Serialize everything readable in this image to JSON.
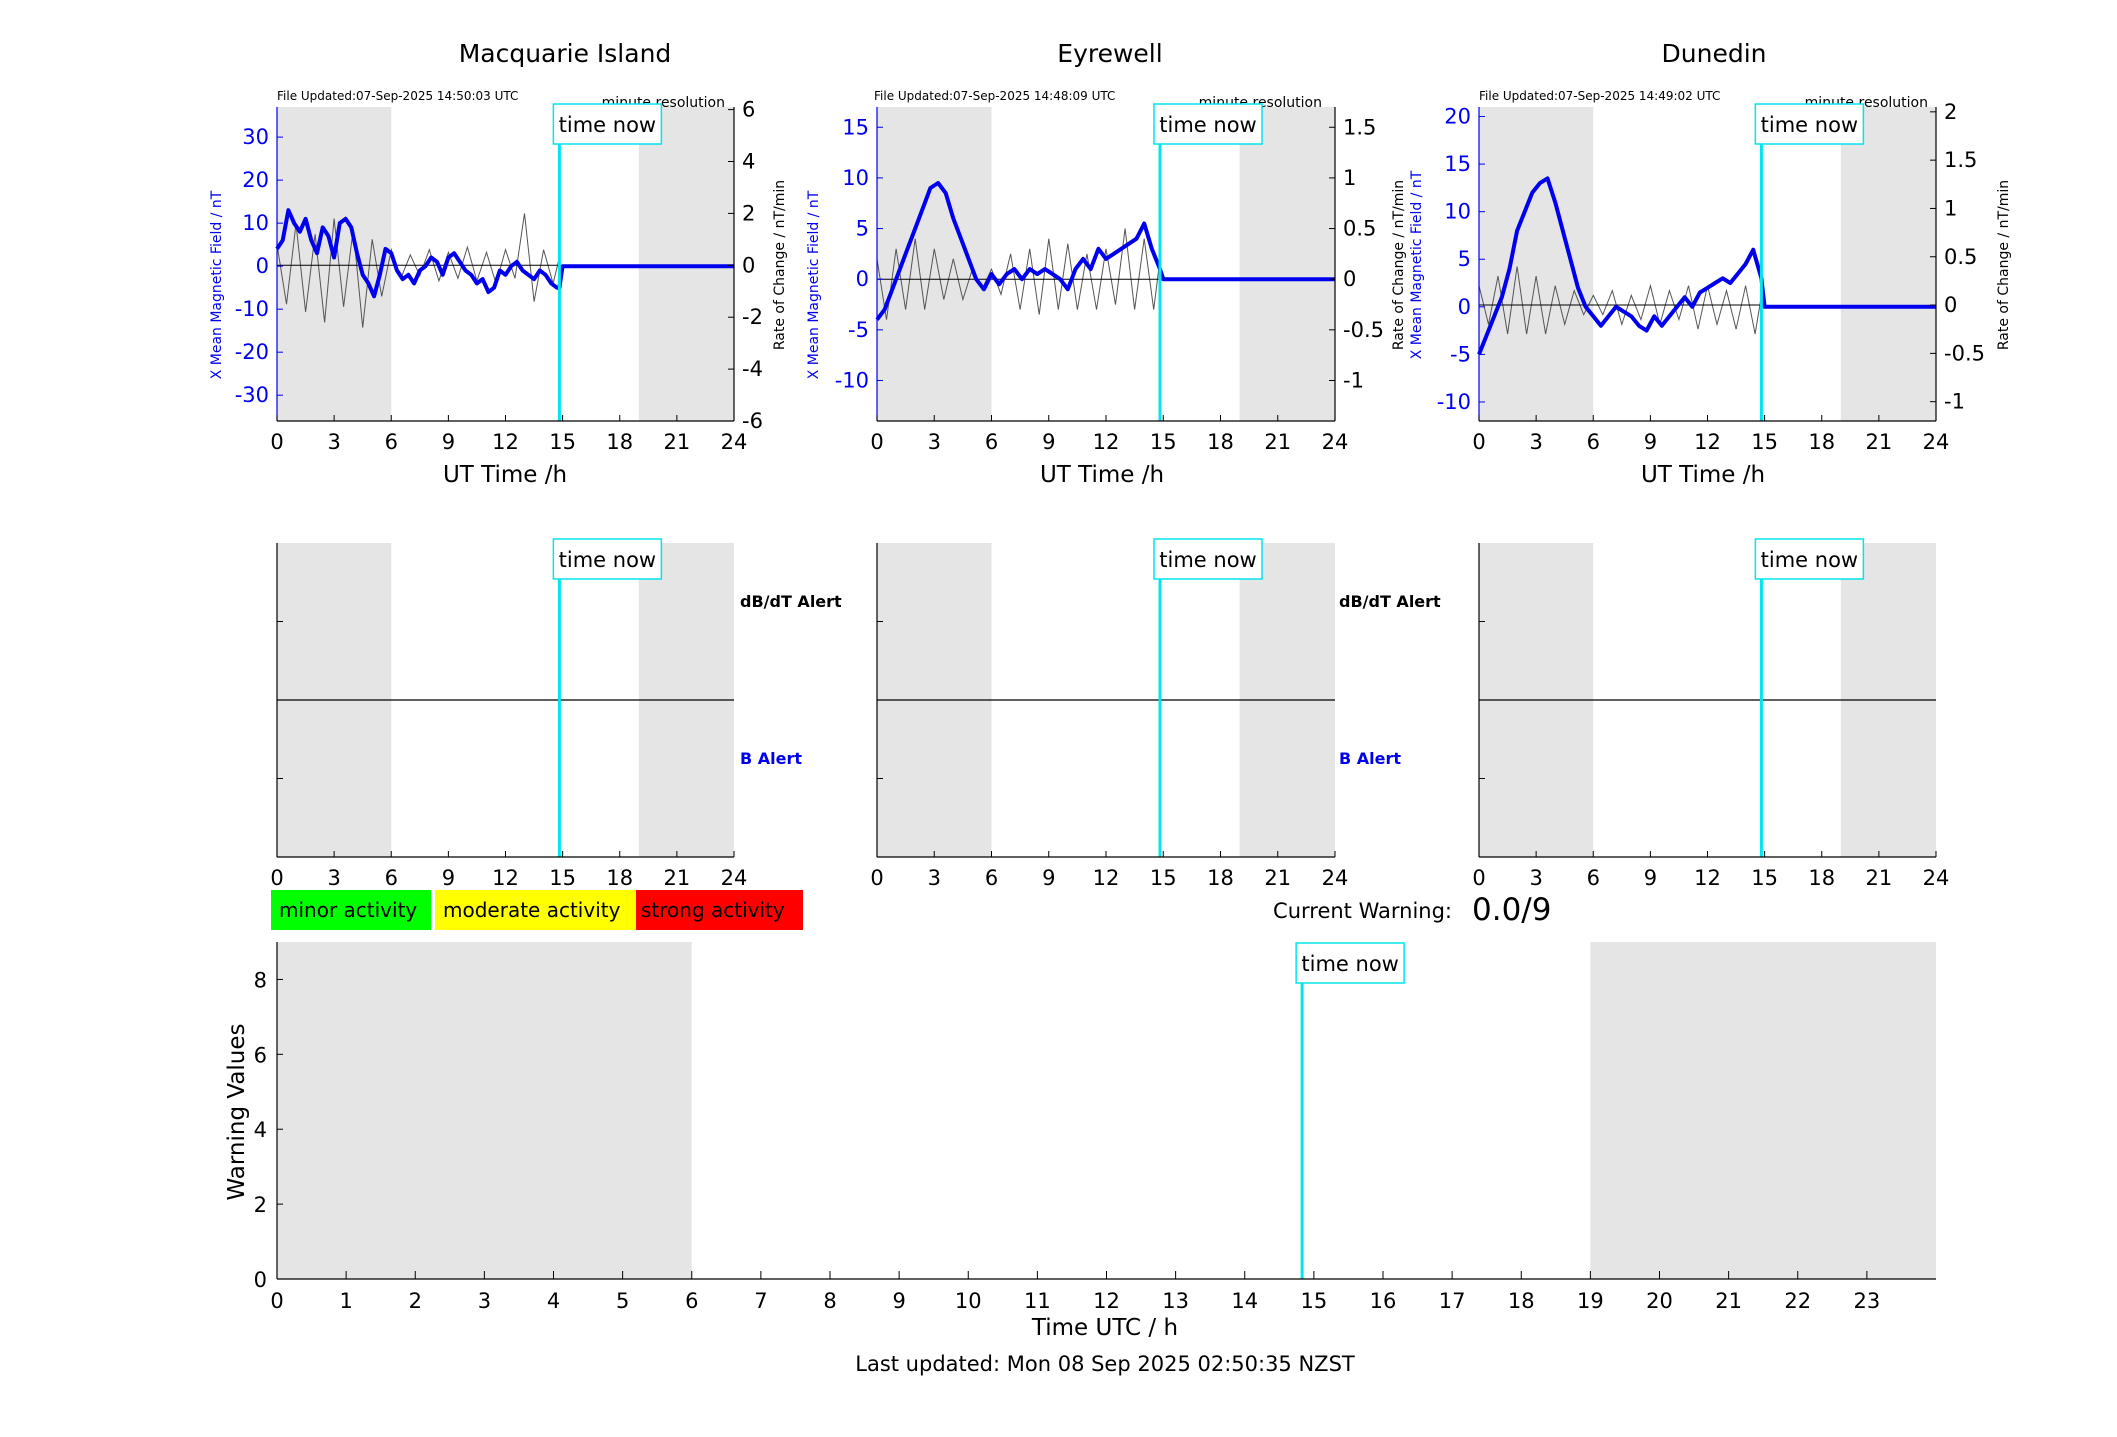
{
  "colors": {
    "shade": "#e5e5e5",
    "field": "#0000ee",
    "rate": "#555555",
    "now": "#00e5ee",
    "minor": "#00ff00",
    "moderate": "#ffff00",
    "strong": "#ff0000"
  },
  "labels": {
    "time_now": "time now",
    "resolution": "minute resolution",
    "ut_xlabel": "UT Time /h",
    "x_ylabel": "X Mean Magnetic Field / nT",
    "rate_ylabel": "Rate of Change / nT/min",
    "dbdt_alert": "dB/dT Alert",
    "b_alert": "B Alert",
    "current_warning_label": "Current Warning:",
    "current_warning_value": "0.0/9",
    "legend_minor": "minor activity",
    "legend_moderate": "moderate activity",
    "legend_strong": "strong activity",
    "warn_ylabel": "Warning Values",
    "warn_xlabel": "Time UTC / h",
    "last_updated": "Last updated: Mon 08 Sep 2025 02:50:35 NZST"
  },
  "chart_data": [
    {
      "type": "line",
      "title": "Macquarie Island",
      "file_updated": "File Updated:07-Sep-2025 14:50:03 UTC",
      "xlim": [
        0,
        24
      ],
      "xticks": [
        0,
        3,
        6,
        9,
        12,
        15,
        18,
        21,
        24
      ],
      "shade": [
        [
          0,
          6
        ],
        [
          19,
          24
        ]
      ],
      "now": 14.83,
      "ylim_left": [
        -36,
        37
      ],
      "yticks_left": [
        -30,
        -20,
        -10,
        0,
        10,
        20,
        30
      ],
      "ylim_right": [
        -6,
        6.1
      ],
      "yticks_right": [
        -6,
        -4,
        -2,
        0,
        2,
        4,
        6
      ],
      "field_series": {
        "x": [
          0,
          0.3,
          0.6,
          0.9,
          1.2,
          1.5,
          1.8,
          2.1,
          2.4,
          2.7,
          3.0,
          3.3,
          3.6,
          3.9,
          4.2,
          4.5,
          4.8,
          5.1,
          5.4,
          5.7,
          6.0,
          6.3,
          6.6,
          6.9,
          7.2,
          7.5,
          7.8,
          8.1,
          8.4,
          8.7,
          9.0,
          9.3,
          9.6,
          9.9,
          10.2,
          10.5,
          10.8,
          11.1,
          11.4,
          11.7,
          12.0,
          12.3,
          12.6,
          12.9,
          13.2,
          13.5,
          13.8,
          14.1,
          14.4,
          14.7,
          14.83,
          15,
          24
        ],
        "y": [
          4,
          6,
          13,
          10,
          8,
          11,
          6,
          3,
          9,
          7,
          2,
          10,
          11,
          9,
          3,
          -2,
          -4,
          -7,
          -2,
          4,
          3,
          -1,
          -3,
          -2,
          -4,
          -1,
          0,
          2,
          1,
          -2,
          2,
          3,
          1,
          -1,
          -2,
          -4,
          -3,
          -6,
          -5,
          -1,
          -2,
          0,
          1,
          -1,
          -2,
          -3,
          -1,
          -2,
          -4,
          -5,
          -5,
          0,
          0
        ]
      },
      "rate_series": {
        "x": [
          0,
          0.5,
          1,
          1.5,
          2,
          2.5,
          3,
          3.5,
          4,
          4.5,
          5,
          5.5,
          6,
          6.5,
          7,
          7.5,
          8,
          8.5,
          9,
          9.5,
          10,
          10.5,
          11,
          11.5,
          12,
          12.5,
          13,
          13.5,
          14,
          14.5,
          14.83
        ],
        "y": [
          0.8,
          -1.5,
          1.6,
          -1.8,
          1.2,
          -2.2,
          1.8,
          -1.6,
          1.4,
          -2.4,
          1.0,
          -1.2,
          0.6,
          -0.5,
          0.4,
          -0.4,
          0.6,
          -0.6,
          0.5,
          -0.5,
          0.7,
          -0.6,
          0.5,
          -0.7,
          0.6,
          -0.5,
          2.0,
          -1.4,
          0.6,
          -0.7,
          0.3
        ]
      }
    },
    {
      "type": "line",
      "title": "Eyrewell",
      "file_updated": "File Updated:07-Sep-2025 14:48:09 UTC",
      "xlim": [
        0,
        24
      ],
      "xticks": [
        0,
        3,
        6,
        9,
        12,
        15,
        18,
        21,
        24
      ],
      "shade": [
        [
          0,
          6
        ],
        [
          19,
          24
        ]
      ],
      "now": 14.83,
      "ylim_left": [
        -14,
        17
      ],
      "yticks_left": [
        -10,
        -5,
        0,
        5,
        10,
        15
      ],
      "ylim_right": [
        -1.4,
        1.7
      ],
      "yticks_right": [
        -1,
        -0.5,
        0,
        0.5,
        1,
        1.5
      ],
      "field_series": {
        "x": [
          0,
          0.4,
          0.8,
          1.2,
          1.6,
          2.0,
          2.4,
          2.8,
          3.2,
          3.6,
          4.0,
          4.4,
          4.8,
          5.2,
          5.6,
          6.0,
          6.4,
          6.8,
          7.2,
          7.6,
          8.0,
          8.4,
          8.8,
          9.2,
          9.6,
          10.0,
          10.4,
          10.8,
          11.2,
          11.6,
          12.0,
          12.4,
          12.8,
          13.2,
          13.6,
          14.0,
          14.4,
          14.83,
          15,
          24
        ],
        "y": [
          -4,
          -3,
          -1,
          1,
          3,
          5,
          7,
          9,
          9.5,
          8.5,
          6,
          4,
          2,
          0,
          -1,
          0.5,
          -0.5,
          0.5,
          1,
          0,
          1,
          0.5,
          1,
          0.5,
          0,
          -1,
          1,
          2,
          1,
          3,
          2,
          2.5,
          3,
          3.5,
          4,
          5.5,
          3,
          1,
          0,
          0
        ]
      },
      "rate_series": {
        "x": [
          0,
          0.5,
          1,
          1.5,
          2,
          2.5,
          3,
          3.5,
          4,
          4.5,
          5,
          5.5,
          6,
          6.5,
          7,
          7.5,
          8,
          8.5,
          9,
          9.5,
          10,
          10.5,
          11,
          11.5,
          12,
          12.5,
          13,
          13.5,
          14,
          14.5,
          14.83
        ],
        "y": [
          0.2,
          -0.4,
          0.3,
          -0.3,
          0.4,
          -0.3,
          0.3,
          -0.2,
          0.2,
          -0.2,
          0.1,
          -0.1,
          0.1,
          -0.15,
          0.25,
          -0.3,
          0.3,
          -0.35,
          0.4,
          -0.3,
          0.35,
          -0.3,
          0.25,
          -0.3,
          0.3,
          -0.25,
          0.5,
          -0.3,
          0.4,
          -0.3,
          0.2
        ]
      }
    },
    {
      "type": "line",
      "title": "Dunedin",
      "file_updated": "File Updated:07-Sep-2025 14:49:02 UTC",
      "xlim": [
        0,
        24
      ],
      "xticks": [
        0,
        3,
        6,
        9,
        12,
        15,
        18,
        21,
        24
      ],
      "shade": [
        [
          0,
          6
        ],
        [
          19,
          24
        ]
      ],
      "now": 14.83,
      "ylim_left": [
        -12,
        21
      ],
      "yticks_left": [
        -10,
        -5,
        0,
        5,
        10,
        15,
        20
      ],
      "ylim_right": [
        -1.2,
        2.05
      ],
      "yticks_right": [
        -1,
        -0.5,
        0,
        0.5,
        1,
        1.5,
        2
      ],
      "field_series": {
        "x": [
          0,
          0.4,
          0.8,
          1.2,
          1.6,
          2.0,
          2.4,
          2.8,
          3.2,
          3.6,
          4.0,
          4.4,
          4.8,
          5.2,
          5.6,
          6.0,
          6.4,
          6.8,
          7.2,
          7.6,
          8.0,
          8.4,
          8.8,
          9.2,
          9.6,
          10.0,
          10.4,
          10.8,
          11.2,
          11.6,
          12.0,
          12.4,
          12.8,
          13.2,
          13.6,
          14.0,
          14.4,
          14.83,
          15,
          24
        ],
        "y": [
          -5,
          -3,
          -1,
          1,
          4,
          8,
          10,
          12,
          13,
          13.5,
          11,
          8,
          5,
          2,
          0,
          -1,
          -2,
          -1,
          0,
          -0.5,
          -1,
          -2,
          -2.5,
          -1,
          -2,
          -1,
          0,
          1,
          0,
          1.5,
          2,
          2.5,
          3,
          2.5,
          3.5,
          4.5,
          6,
          3,
          0,
          0
        ]
      },
      "rate_series": {
        "x": [
          0,
          0.5,
          1,
          1.5,
          2,
          2.5,
          3,
          3.5,
          4,
          4.5,
          5,
          5.5,
          6,
          6.5,
          7,
          7.5,
          8,
          8.5,
          9,
          9.5,
          10,
          10.5,
          11,
          11.5,
          12,
          12.5,
          13,
          13.5,
          14,
          14.5,
          14.83
        ],
        "y": [
          0.2,
          -0.2,
          0.3,
          -0.3,
          0.4,
          -0.3,
          0.3,
          -0.3,
          0.2,
          -0.2,
          0.15,
          -0.1,
          0.1,
          -0.1,
          0.15,
          -0.2,
          0.1,
          -0.15,
          0.2,
          -0.2,
          0.15,
          -0.15,
          0.2,
          -0.25,
          0.2,
          -0.2,
          0.15,
          -0.25,
          0.2,
          -0.3,
          0.1
        ]
      }
    },
    {
      "type": "bar",
      "title": "",
      "xlabel": "Time UTC / h",
      "ylabel": "Warning Values",
      "xlim": [
        0,
        24
      ],
      "xticks": [
        0,
        1,
        2,
        3,
        4,
        5,
        6,
        7,
        8,
        9,
        10,
        11,
        12,
        13,
        14,
        15,
        16,
        17,
        18,
        19,
        20,
        21,
        22,
        23
      ],
      "ylim": [
        0,
        9
      ],
      "yticks": [
        0,
        2,
        4,
        6,
        8
      ],
      "shade": [
        [
          0,
          6
        ],
        [
          19,
          24
        ]
      ],
      "now": 14.83,
      "values": []
    }
  ]
}
